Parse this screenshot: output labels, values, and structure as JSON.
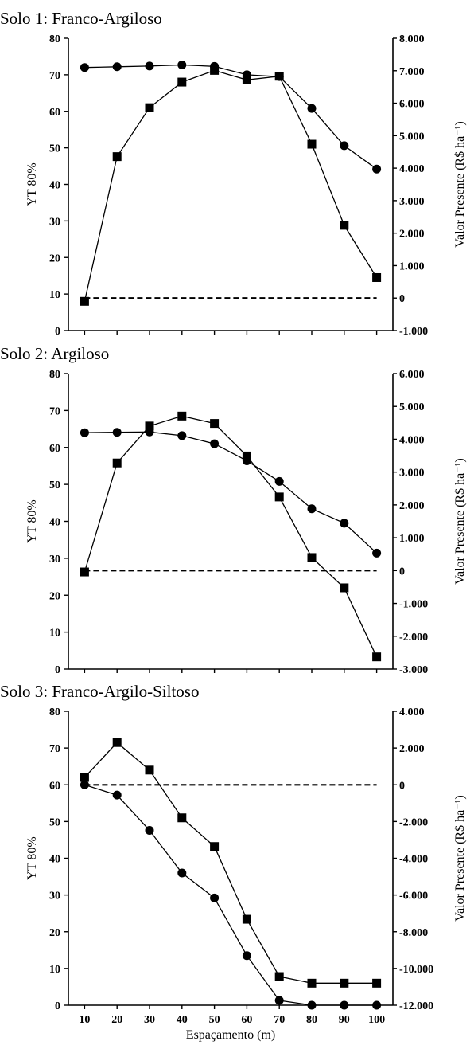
{
  "chart_data": [
    {
      "type": "line",
      "title": "Solo 1: Franco-Argiloso",
      "ylabel": "YT 80%",
      "y2label": "Valor Presente (R$ ha⁻¹)",
      "x": [
        10,
        20,
        30,
        40,
        50,
        60,
        70,
        80,
        90,
        100
      ],
      "ylim": [
        0,
        80
      ],
      "y2lim": [
        -1000,
        8000
      ],
      "yticks": [
        "0",
        "10",
        "20",
        "30",
        "40",
        "50",
        "60",
        "70",
        "80"
      ],
      "y2ticks": [
        "-1.000",
        "0",
        "1.000",
        "2.000",
        "3.000",
        "4.000",
        "5.000",
        "6.000",
        "7.000",
        "8.000"
      ],
      "series": [
        {
          "marker": "circle",
          "axis": "left",
          "values": [
            72,
            72.2,
            72.4,
            72.7,
            72.3,
            70,
            69.5,
            60.8,
            50.6,
            44.2
          ]
        },
        {
          "marker": "square",
          "axis": "left",
          "values": [
            8,
            47.6,
            61,
            68,
            71.2,
            68.6,
            69.6,
            51,
            28.8,
            14.5
          ]
        },
        {
          "marker": "none",
          "style": "dashed",
          "axis": "right",
          "values": [
            0,
            0,
            0,
            0,
            0,
            0,
            0,
            0,
            0,
            0
          ]
        }
      ]
    },
    {
      "type": "line",
      "title": "Solo 2: Argiloso",
      "ylabel": "YT 80%",
      "y2label": "Valor Presente (R$ ha⁻¹)",
      "x": [
        10,
        20,
        30,
        40,
        50,
        60,
        70,
        80,
        90,
        100
      ],
      "ylim": [
        0,
        80
      ],
      "y2lim": [
        -3000,
        6000
      ],
      "yticks": [
        "0",
        "10",
        "20",
        "30",
        "40",
        "50",
        "60",
        "70",
        "80"
      ],
      "y2ticks": [
        "-3.000",
        "-2.000",
        "-1.000",
        "0",
        "1.000",
        "2.000",
        "3.000",
        "4.000",
        "5.000",
        "6.000"
      ],
      "series": [
        {
          "marker": "circle",
          "axis": "left",
          "values": [
            64,
            64.1,
            64.2,
            63.2,
            61,
            56.4,
            50.8,
            43.4,
            39.5,
            31.4
          ]
        },
        {
          "marker": "square",
          "axis": "left",
          "values": [
            26.3,
            55.8,
            65.8,
            68.5,
            66.5,
            57.7,
            46.6,
            30.2,
            22,
            3.3
          ]
        },
        {
          "marker": "none",
          "style": "dashed",
          "axis": "right",
          "values": [
            0,
            0,
            0,
            0,
            0,
            0,
            0,
            0,
            0,
            0
          ]
        }
      ]
    },
    {
      "type": "line",
      "title": "Solo 3: Franco-Argilo-Siltoso",
      "ylabel": "YT 80%",
      "y2label": "Valor Presente (R$ ha⁻¹)",
      "xlabel": "Espaçamento (m)",
      "x": [
        10,
        20,
        30,
        40,
        50,
        60,
        70,
        80,
        90,
        100
      ],
      "xticks": [
        "10",
        "20",
        "30",
        "40",
        "50",
        "60",
        "70",
        "80",
        "90",
        "100"
      ],
      "ylim": [
        0,
        80
      ],
      "y2lim": [
        -12000,
        4000
      ],
      "yticks": [
        "0",
        "10",
        "20",
        "30",
        "40",
        "50",
        "60",
        "70",
        "80"
      ],
      "y2ticks": [
        "-12.000",
        "-10.000",
        "-8.000",
        "-6.000",
        "-4.000",
        "-2.000",
        "0",
        "2.000",
        "4.000"
      ],
      "series": [
        {
          "marker": "circle",
          "axis": "left",
          "values": [
            60,
            57.2,
            47.6,
            36,
            29.2,
            13.5,
            1.3,
            0,
            0,
            0
          ]
        },
        {
          "marker": "square",
          "axis": "left",
          "values": [
            62,
            71.5,
            64,
            51,
            43.2,
            23.4,
            7.8,
            6,
            6,
            6
          ]
        },
        {
          "marker": "none",
          "style": "dashed",
          "axis": "right",
          "values": [
            0,
            0,
            0,
            0,
            0,
            0,
            0,
            0,
            0,
            0
          ]
        }
      ]
    }
  ]
}
